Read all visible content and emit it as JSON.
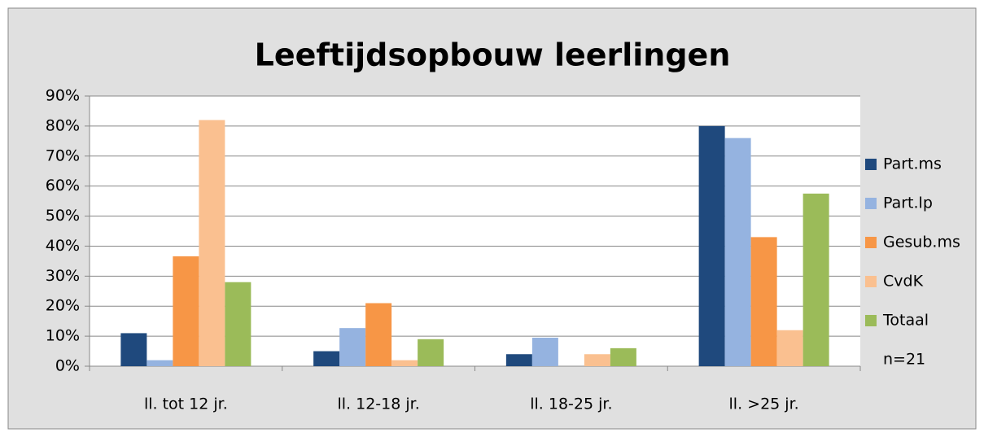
{
  "chart_data": {
    "type": "bar",
    "title": "Leeftijdsopbouw leerlingen",
    "categories": [
      "ll. tot 12 jr.",
      "ll. 12-18 jr.",
      "ll. 18-25 jr.",
      "ll. >25 jr."
    ],
    "series": [
      {
        "name": "Part.ms",
        "color": "#1f497d",
        "values": [
          11,
          5,
          4,
          80
        ]
      },
      {
        "name": "Part.lp",
        "color": "#95b3e0",
        "values": [
          2,
          12.7,
          9.5,
          76
        ]
      },
      {
        "name": "Gesub.ms",
        "color": "#f79646",
        "values": [
          36.6,
          21,
          0,
          43
        ]
      },
      {
        "name": "CvdK",
        "color": "#fac090",
        "values": [
          82,
          2,
          4,
          12
        ]
      },
      {
        "name": "Totaal",
        "color": "#9bbb59",
        "values": [
          28,
          9,
          6,
          57.5
        ]
      }
    ],
    "ylim": [
      0,
      90
    ],
    "yticks": [
      {
        "value": 0,
        "label": "0%"
      },
      {
        "value": 10,
        "label": "10%"
      },
      {
        "value": 20,
        "label": "20%"
      },
      {
        "value": 30,
        "label": "30%"
      },
      {
        "value": 40,
        "label": "40%"
      },
      {
        "value": 50,
        "label": "50%"
      },
      {
        "value": 60,
        "label": "60%"
      },
      {
        "value": 70,
        "label": "70%"
      },
      {
        "value": 80,
        "label": "80%"
      },
      {
        "value": 90,
        "label": "90%"
      }
    ],
    "grid": true,
    "legend": "right",
    "annotation": "n=21"
  }
}
